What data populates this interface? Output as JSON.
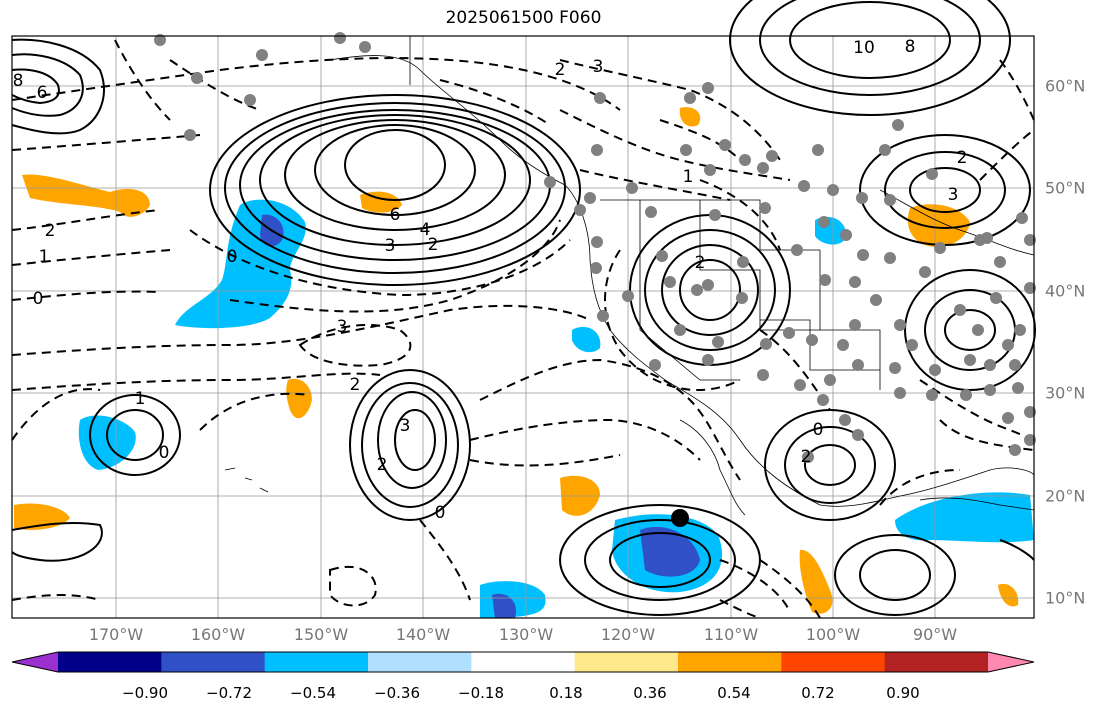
{
  "title": "2025061500 F060",
  "lon_labels": [
    "170°W",
    "160°W",
    "150°W",
    "140°W",
    "130°W",
    "120°W",
    "110°W",
    "100°W",
    "90°W"
  ],
  "lat_labels": [
    "60°N",
    "50°N",
    "40°N",
    "30°N",
    "20°N",
    "10°N"
  ],
  "colorbar": {
    "colors": [
      "#9b30d0",
      "#00008b",
      "#3050c8",
      "#00bfff",
      "#b0e0ff",
      "#ffffff",
      "#ffe88a",
      "#ffa500",
      "#ff4500",
      "#b22222",
      "#ff88b0"
    ],
    "labels": [
      "−0.90",
      "−0.72",
      "−0.54",
      "−0.36",
      "−0.18",
      "0.18",
      "0.36",
      "0.54",
      "0.72",
      "0.90"
    ]
  },
  "contour_labels": {
    "high_pacific_1": "6",
    "high_pacific_2": "4",
    "high_pacific_3": "3",
    "high_pacific_4": "2",
    "low_central_3": "3",
    "low_central_2": "2",
    "west_3": "3",
    "west_2": "2",
    "west_0": "0",
    "ne_10": "10",
    "ne_8": "8",
    "ne_3": "3",
    "ne_2": "2",
    "mex_2": "2",
    "gulf_2": "2",
    "gulf_0": "0",
    "pac_1": "1",
    "pac_0": "0",
    "left_2": "2",
    "left_1": "1",
    "left_0": "0",
    "dashed_2": "2",
    "dashed_3": "3",
    "dashed_1": "1",
    "bottom_0": "0",
    "far_left_8": "8",
    "far_left_6": "6"
  }
}
